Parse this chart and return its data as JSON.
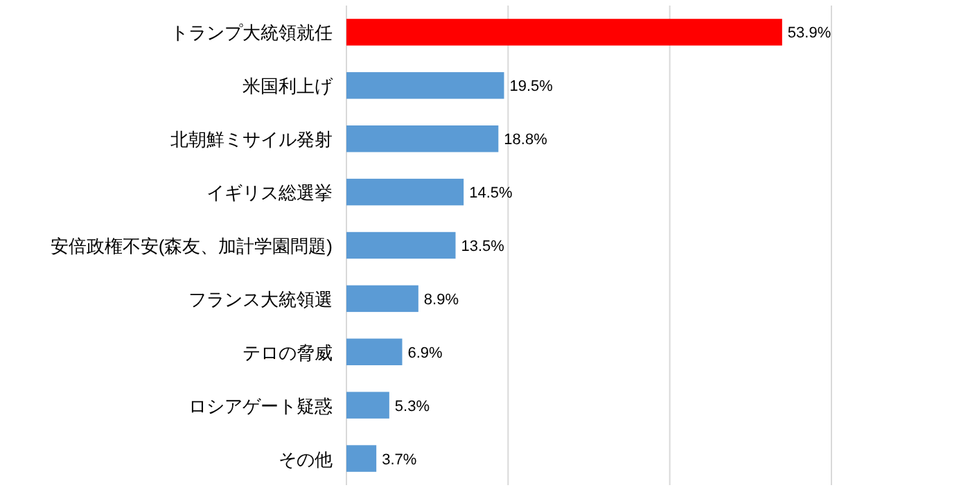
{
  "chart_data": {
    "type": "bar",
    "orientation": "horizontal",
    "categories": [
      "トランプ大統領就任",
      "米国利上げ",
      "北朝鮮ミサイル発射",
      "イギリス総選挙",
      "安倍政権不安(森友、加計学園問題)",
      "フランス大統領選",
      "テロの脅威",
      "ロシアゲート疑惑",
      "その他"
    ],
    "values": [
      53.9,
      19.5,
      18.8,
      14.5,
      13.5,
      8.9,
      6.9,
      5.3,
      3.7
    ],
    "value_labels": [
      "53.9%",
      "19.5%",
      "18.8%",
      "14.5%",
      "13.5%",
      "8.9%",
      "6.9%",
      "5.3%",
      "3.7%"
    ],
    "colors": [
      "#ff0000",
      "#5b9bd5",
      "#5b9bd5",
      "#5b9bd5",
      "#5b9bd5",
      "#5b9bd5",
      "#5b9bd5",
      "#5b9bd5",
      "#5b9bd5"
    ],
    "xlim": [
      0,
      60
    ],
    "xticks": [
      {
        "value": 0,
        "label": null
      },
      {
        "value": 20,
        "label": null
      },
      {
        "value": 40,
        "label": null
      },
      {
        "value": 60,
        "label": null
      }
    ],
    "grid": "x",
    "tick_labels": "y"
  }
}
